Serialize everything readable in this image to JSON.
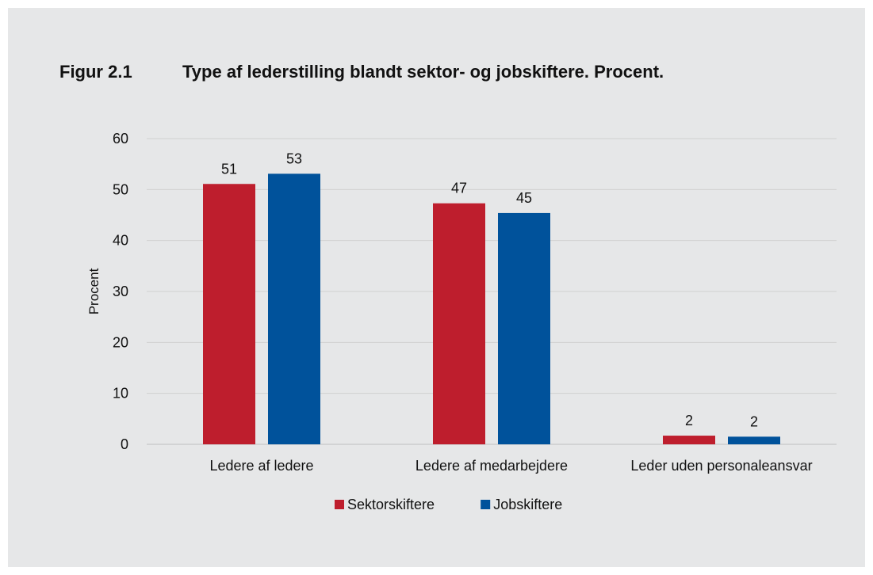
{
  "figure": {
    "label": "Figur 2.1",
    "title": "Type af lederstilling blandt sektor- og jobskiftere. Procent."
  },
  "chart_data": {
    "type": "bar",
    "categories": [
      "Ledere af ledere",
      "Ledere af medarbejdere",
      "Leder uden personaleansvar"
    ],
    "series": [
      {
        "name": "Sektorskiftere",
        "values": [
          51,
          47,
          2
        ],
        "bar_values": [
          51.1,
          47.3,
          1.7
        ],
        "color": "#be1e2d"
      },
      {
        "name": "Jobskiftere",
        "values": [
          53,
          45,
          2
        ],
        "bar_values": [
          53.1,
          45.4,
          1.5
        ],
        "color": "#00529b"
      }
    ],
    "ylabel": "Procent",
    "xlabel": "",
    "ylim": [
      0,
      60
    ],
    "yticks": [
      0,
      10,
      20,
      30,
      40,
      50,
      60
    ],
    "grid": true,
    "legend_position": "bottom"
  }
}
